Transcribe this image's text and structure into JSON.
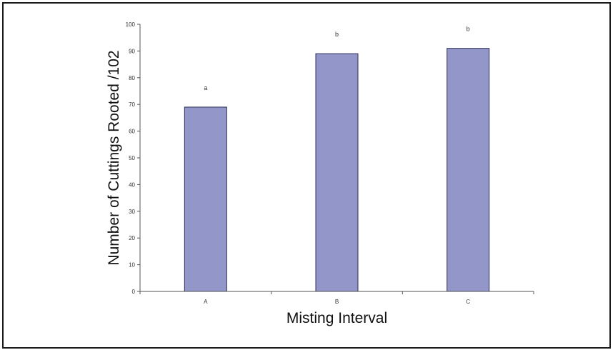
{
  "chart_data": {
    "type": "bar",
    "categories": [
      "A",
      "B",
      "C"
    ],
    "values": [
      69,
      89,
      91
    ],
    "data_labels": [
      "a",
      "b",
      "b"
    ],
    "title": "",
    "xlabel": "Misting Interval",
    "ylabel": "Number of Cuttings Rooted /102",
    "ylim": [
      0,
      100
    ],
    "yticks": [
      0,
      10,
      20,
      30,
      40,
      50,
      60,
      70,
      80,
      90,
      100
    ],
    "grid": false,
    "legend": "none",
    "bar_color": "#9396c8",
    "bar_edge_color": "#2b2d5a"
  }
}
